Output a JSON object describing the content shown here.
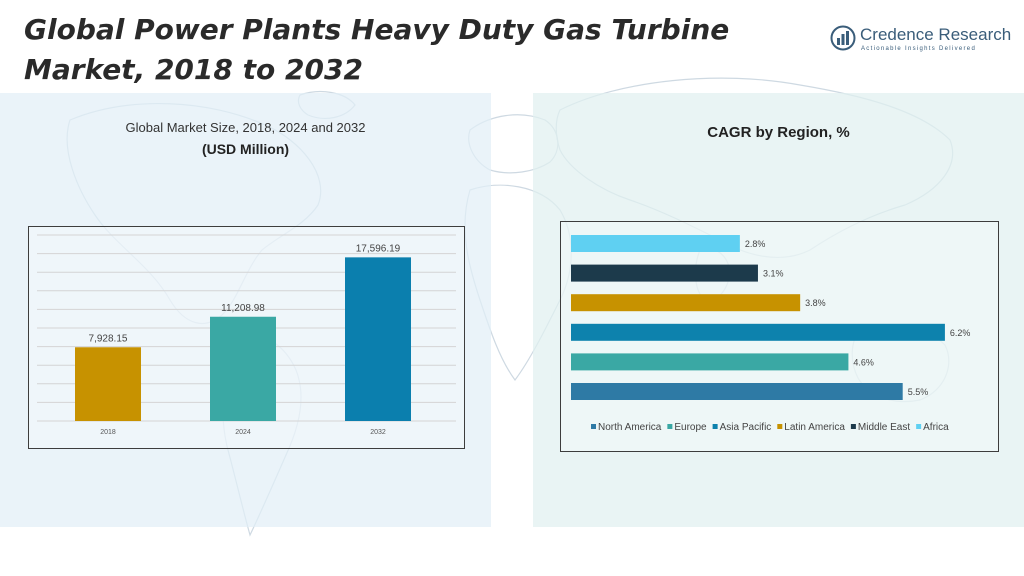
{
  "header": {
    "title": "Global Power Plants Heavy Duty Gas Turbine Market, 2018 to 2032"
  },
  "logo": {
    "name": "Credence Research",
    "tagline": "Actionable Insights Delivered",
    "icon": "bar-chart-circle-icon",
    "color": "#3a5d7a"
  },
  "left_panel": {
    "title_line1": "Global Market Size, 2018, 2024 and 2032",
    "title_line2": "(USD Million)"
  },
  "right_panel": {
    "title": "CAGR by Region, %"
  },
  "chart_data": [
    {
      "type": "bar",
      "title": "Global Market Size, 2018, 2024 and 2032",
      "subtitle": "(USD Million)",
      "categories": [
        "2018",
        "2024",
        "2032"
      ],
      "values": [
        7928.15,
        11208.98,
        17596.19
      ],
      "value_labels": [
        "7,928.15",
        "11,208.98",
        "17,596.19"
      ],
      "colors": [
        "#c79200",
        "#3aa8a4",
        "#0b7fae"
      ],
      "ylim": [
        0,
        20000
      ],
      "grid": true
    },
    {
      "type": "bar",
      "orientation": "horizontal",
      "title": "CAGR by Region, %",
      "categories": [
        "North America",
        "Europe",
        "Asia Pacific",
        "Latin America",
        "Middle East",
        "Africa"
      ],
      "values": [
        5.5,
        4.6,
        6.2,
        3.8,
        3.1,
        2.8
      ],
      "value_labels": [
        "5.5%",
        "4.6%",
        "6.2%",
        "3.8%",
        "3.1%",
        "2.8%"
      ],
      "colors": [
        "#2e7aa5",
        "#3aa8a4",
        "#0d82ad",
        "#c79200",
        "#1c3a4b",
        "#5fd0f2"
      ],
      "xlim": [
        0,
        6.5
      ],
      "legend": "bottom",
      "grid": false
    }
  ]
}
